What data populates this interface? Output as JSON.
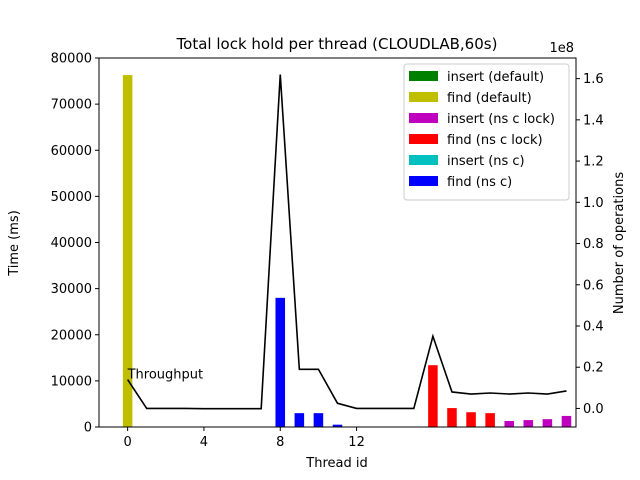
{
  "chart_data": {
    "type": "bar",
    "title": "Total lock hold per thread (CLOUDLAB,60s)",
    "xlabel": "Thread id",
    "ylabel": "Time (ms)",
    "y2label": "Number of operations",
    "y2_multiplier": "1e8",
    "xticks": [
      0,
      4,
      8,
      12
    ],
    "xlim": [
      -1.5,
      23.5
    ],
    "ylim": [
      0,
      80000
    ],
    "yticks": [
      0,
      10000,
      20000,
      30000,
      40000,
      50000,
      60000,
      70000,
      80000
    ],
    "y2lim": [
      -0.09,
      1.7
    ],
    "y2ticks": [
      0.0,
      0.2,
      0.4,
      0.6,
      0.8,
      1.0,
      1.2,
      1.4,
      1.6
    ],
    "y2tick_labels": [
      "0.0",
      "0.2",
      "0.4",
      "0.6",
      "0.8",
      "1.0",
      "1.2",
      "1.4",
      "1.6"
    ],
    "legend_position": "top-right",
    "series": [
      {
        "name": "insert (default)",
        "color": "#008000",
        "x": [],
        "values": []
      },
      {
        "name": "find (default)",
        "color": "#bfbf00",
        "x": [
          0
        ],
        "values": [
          76300
        ]
      },
      {
        "name": "insert (ns c lock)",
        "color": "#bf00bf",
        "x": [
          20,
          21,
          22,
          23
        ],
        "values": [
          1300,
          1500,
          1700,
          2400
        ]
      },
      {
        "name": "find (ns c lock)",
        "color": "#ff0000",
        "x": [
          16,
          17,
          18,
          19
        ],
        "values": [
          13400,
          4100,
          3200,
          3000
        ]
      },
      {
        "name": "insert (ns c)",
        "color": "#00bfbf",
        "x": [],
        "values": []
      },
      {
        "name": "find (ns c)",
        "color": "#0000ff",
        "x": [
          8,
          9,
          10,
          11
        ],
        "values": [
          28000,
          3000,
          3000,
          500
        ]
      }
    ],
    "line": {
      "color": "#000000",
      "axis": "right",
      "x": [
        0,
        1,
        2,
        3,
        4,
        5,
        6,
        7,
        8,
        9,
        10,
        11,
        12,
        13,
        14,
        15,
        16,
        17,
        18,
        19,
        20,
        21,
        22,
        23
      ],
      "values": [
        0.14,
        0.0,
        0.0,
        0.0,
        -0.001,
        -0.001,
        -0.001,
        -0.001,
        1.62,
        0.19,
        0.19,
        0.025,
        0.0,
        0.0,
        0.0,
        0.0,
        0.35,
        0.08,
        0.07,
        0.075,
        0.07,
        0.075,
        0.07,
        0.085
      ]
    },
    "annotations": [
      {
        "text": "Throughput",
        "x": 0,
        "y": 10500
      }
    ]
  }
}
